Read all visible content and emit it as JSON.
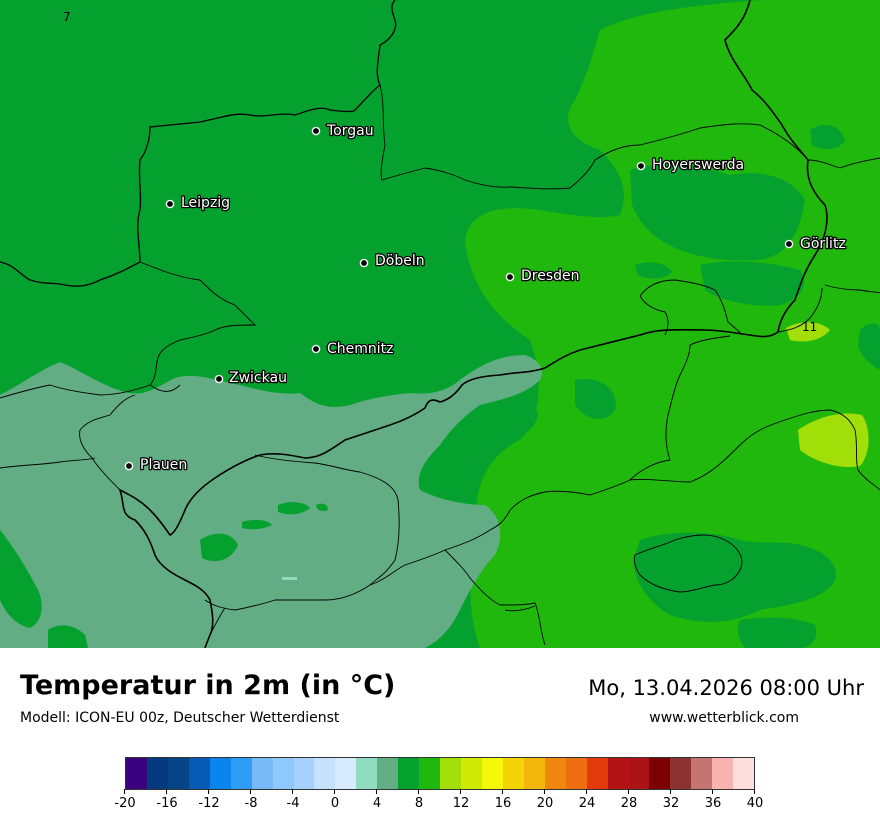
{
  "map": {
    "cities": [
      {
        "name": "Torgau"
      },
      {
        "name": "Hoyerswerda"
      },
      {
        "name": "Leipzig"
      },
      {
        "name": "Görlitz"
      },
      {
        "name": "Döbeln"
      },
      {
        "name": "Dresden"
      },
      {
        "name": "Chemnitz"
      },
      {
        "name": "Zwickau"
      },
      {
        "name": "Plauen"
      }
    ],
    "values": [
      "7",
      "11"
    ],
    "colors": {
      "temp_4_6": "#62ad84",
      "temp_6_8": "#05a12e",
      "temp_8_10": "#21b80e",
      "temp_10_12": "#a2de08",
      "border": "#000000"
    }
  },
  "footer": {
    "title": "Temperatur in 2m (in °C)",
    "subtitle": "Modell: ICON-EU 00z, Deutscher Wetterdienst",
    "datetime": "Mo, 13.04.2026 08:00 Uhr",
    "website": "www.wetterblick.com"
  },
  "legend": {
    "colors": [
      "#3a017f",
      "#053b7e",
      "#054585",
      "#065ab4",
      "#0a85ed",
      "#2e9df8",
      "#78baf8",
      "#8ec8fc",
      "#a6d2fd",
      "#c4e1fd",
      "#d9ebfe",
      "#90dcc0",
      "#62ad84",
      "#05a12e",
      "#21b80e",
      "#a2de08",
      "#cfea05",
      "#f5f80a",
      "#f3d407",
      "#f3b70b",
      "#f08810",
      "#ef6e12",
      "#e43a0b",
      "#b41316",
      "#ab1417",
      "#7c0000",
      "#8c3231",
      "#c47572",
      "#f9b3b0",
      "#fde0de"
    ],
    "ticks": [
      "-20",
      "-16",
      "-12",
      "-8",
      "-4",
      "0",
      "4",
      "8",
      "12",
      "16",
      "20",
      "24",
      "28",
      "32",
      "36",
      "40"
    ]
  }
}
